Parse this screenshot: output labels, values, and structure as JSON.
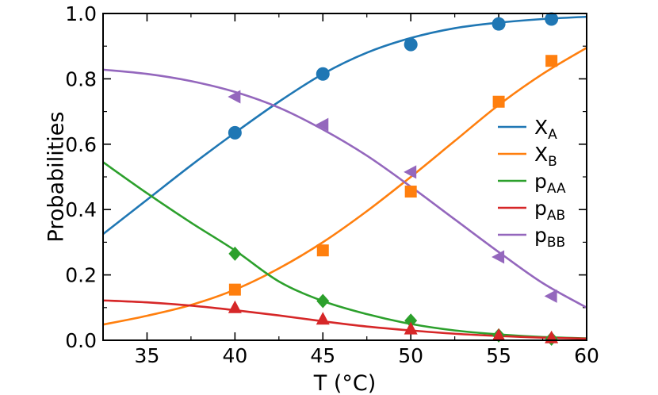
{
  "chart_data": {
    "type": "line",
    "title": "",
    "xlabel": "T (°C)",
    "ylabel": "Probabilities",
    "xlim": [
      32.5,
      60
    ],
    "ylim": [
      0,
      1.0
    ],
    "xticks": [
      "35",
      "40",
      "45",
      "50",
      "55",
      "60"
    ],
    "yticks": [
      "0.0",
      "0.2",
      "0.4",
      "0.6",
      "0.8",
      "1.0"
    ],
    "legend_position": "right",
    "series": [
      {
        "name": "X_A",
        "main": "X",
        "sub": "A",
        "color": "#1f77b4",
        "marker": "circle",
        "points": {
          "x": [
            40,
            45,
            50,
            55,
            58
          ],
          "y": [
            0.635,
            0.815,
            0.905,
            0.968,
            0.983
          ]
        },
        "curve": {
          "x": [
            32.5,
            35,
            37.5,
            40,
            42.5,
            45,
            47.5,
            50,
            52.5,
            55,
            57.5,
            60
          ],
          "y": [
            0.325,
            0.43,
            0.535,
            0.635,
            0.73,
            0.815,
            0.88,
            0.925,
            0.955,
            0.972,
            0.983,
            0.99
          ]
        }
      },
      {
        "name": "X_B",
        "main": "X",
        "sub": "B",
        "color": "#ff7f0e",
        "marker": "square",
        "points": {
          "x": [
            40,
            45,
            50,
            55,
            58
          ],
          "y": [
            0.155,
            0.275,
            0.455,
            0.73,
            0.855
          ]
        },
        "curve": {
          "x": [
            32.5,
            35,
            37.5,
            40,
            42.5,
            45,
            47.5,
            50,
            52.5,
            55,
            57.5,
            60
          ],
          "y": [
            0.048,
            0.075,
            0.108,
            0.155,
            0.22,
            0.3,
            0.395,
            0.5,
            0.61,
            0.72,
            0.815,
            0.895
          ]
        }
      },
      {
        "name": "p_AA",
        "main": "p",
        "sub": "AA",
        "color": "#2ca02c",
        "marker": "diamond",
        "points": {
          "x": [
            40,
            45,
            50,
            55,
            58
          ],
          "y": [
            0.265,
            0.12,
            0.06,
            0.015,
            0.005
          ]
        },
        "curve": {
          "x": [
            32.5,
            35,
            37.5,
            40,
            42.5,
            45,
            47.5,
            50,
            52.5,
            55,
            57.5,
            60
          ],
          "y": [
            0.545,
            0.45,
            0.36,
            0.275,
            0.18,
            0.12,
            0.08,
            0.05,
            0.03,
            0.018,
            0.01,
            0.006
          ]
        }
      },
      {
        "name": "p_AB",
        "main": "p",
        "sub": "AB",
        "color": "#d62728",
        "marker": "triangle-up",
        "points": {
          "x": [
            40,
            45,
            50,
            55,
            58
          ],
          "y": [
            0.1,
            0.065,
            0.035,
            0.015,
            0.008
          ]
        },
        "curve": {
          "x": [
            32.5,
            35,
            37.5,
            40,
            42.5,
            45,
            47.5,
            50,
            52.5,
            55,
            57.5,
            60
          ],
          "y": [
            0.122,
            0.116,
            0.106,
            0.092,
            0.076,
            0.058,
            0.042,
            0.03,
            0.02,
            0.013,
            0.008,
            0.005
          ]
        }
      },
      {
        "name": "p_BB",
        "main": "p",
        "sub": "BB",
        "color": "#9467bd",
        "marker": "triangle-left",
        "points": {
          "x": [
            40,
            45,
            50,
            55,
            58
          ],
          "y": [
            0.745,
            0.66,
            0.515,
            0.255,
            0.135
          ]
        },
        "curve": {
          "x": [
            32.5,
            35,
            37.5,
            40,
            42.5,
            45,
            47.5,
            50,
            52.5,
            55,
            57.5,
            60
          ],
          "y": [
            0.828,
            0.815,
            0.793,
            0.76,
            0.712,
            0.645,
            0.565,
            0.47,
            0.37,
            0.27,
            0.175,
            0.1
          ]
        }
      }
    ]
  }
}
